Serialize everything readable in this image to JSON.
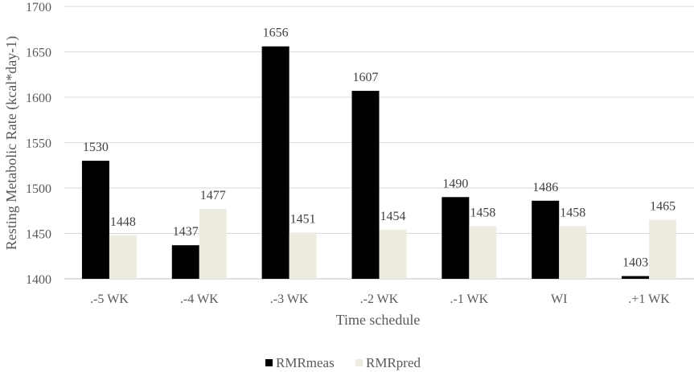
{
  "chart_data": {
    "type": "bar",
    "title": "",
    "xlabel": "Time schedule",
    "ylabel": "Resting Metabolic Rate (kcal*day-1)",
    "ylim": [
      1400,
      1700
    ],
    "yticks": [
      1400,
      1450,
      1500,
      1550,
      1600,
      1650,
      1700
    ],
    "grid": true,
    "legend_position": "bottom",
    "categories": [
      ".-5 WK",
      ".-4 WK",
      ".-3 WK",
      ".-2 WK",
      ".-1 WK",
      "WI",
      ".+1 WK"
    ],
    "series": [
      {
        "name": "RMRmeas",
        "color": "#000000",
        "values": [
          1530,
          1437,
          1656,
          1607,
          1490,
          1486,
          1403
        ]
      },
      {
        "name": "RMRpred",
        "color": "#eeece1",
        "values": [
          1448,
          1477,
          1451,
          1454,
          1458,
          1458,
          1465
        ]
      }
    ]
  }
}
